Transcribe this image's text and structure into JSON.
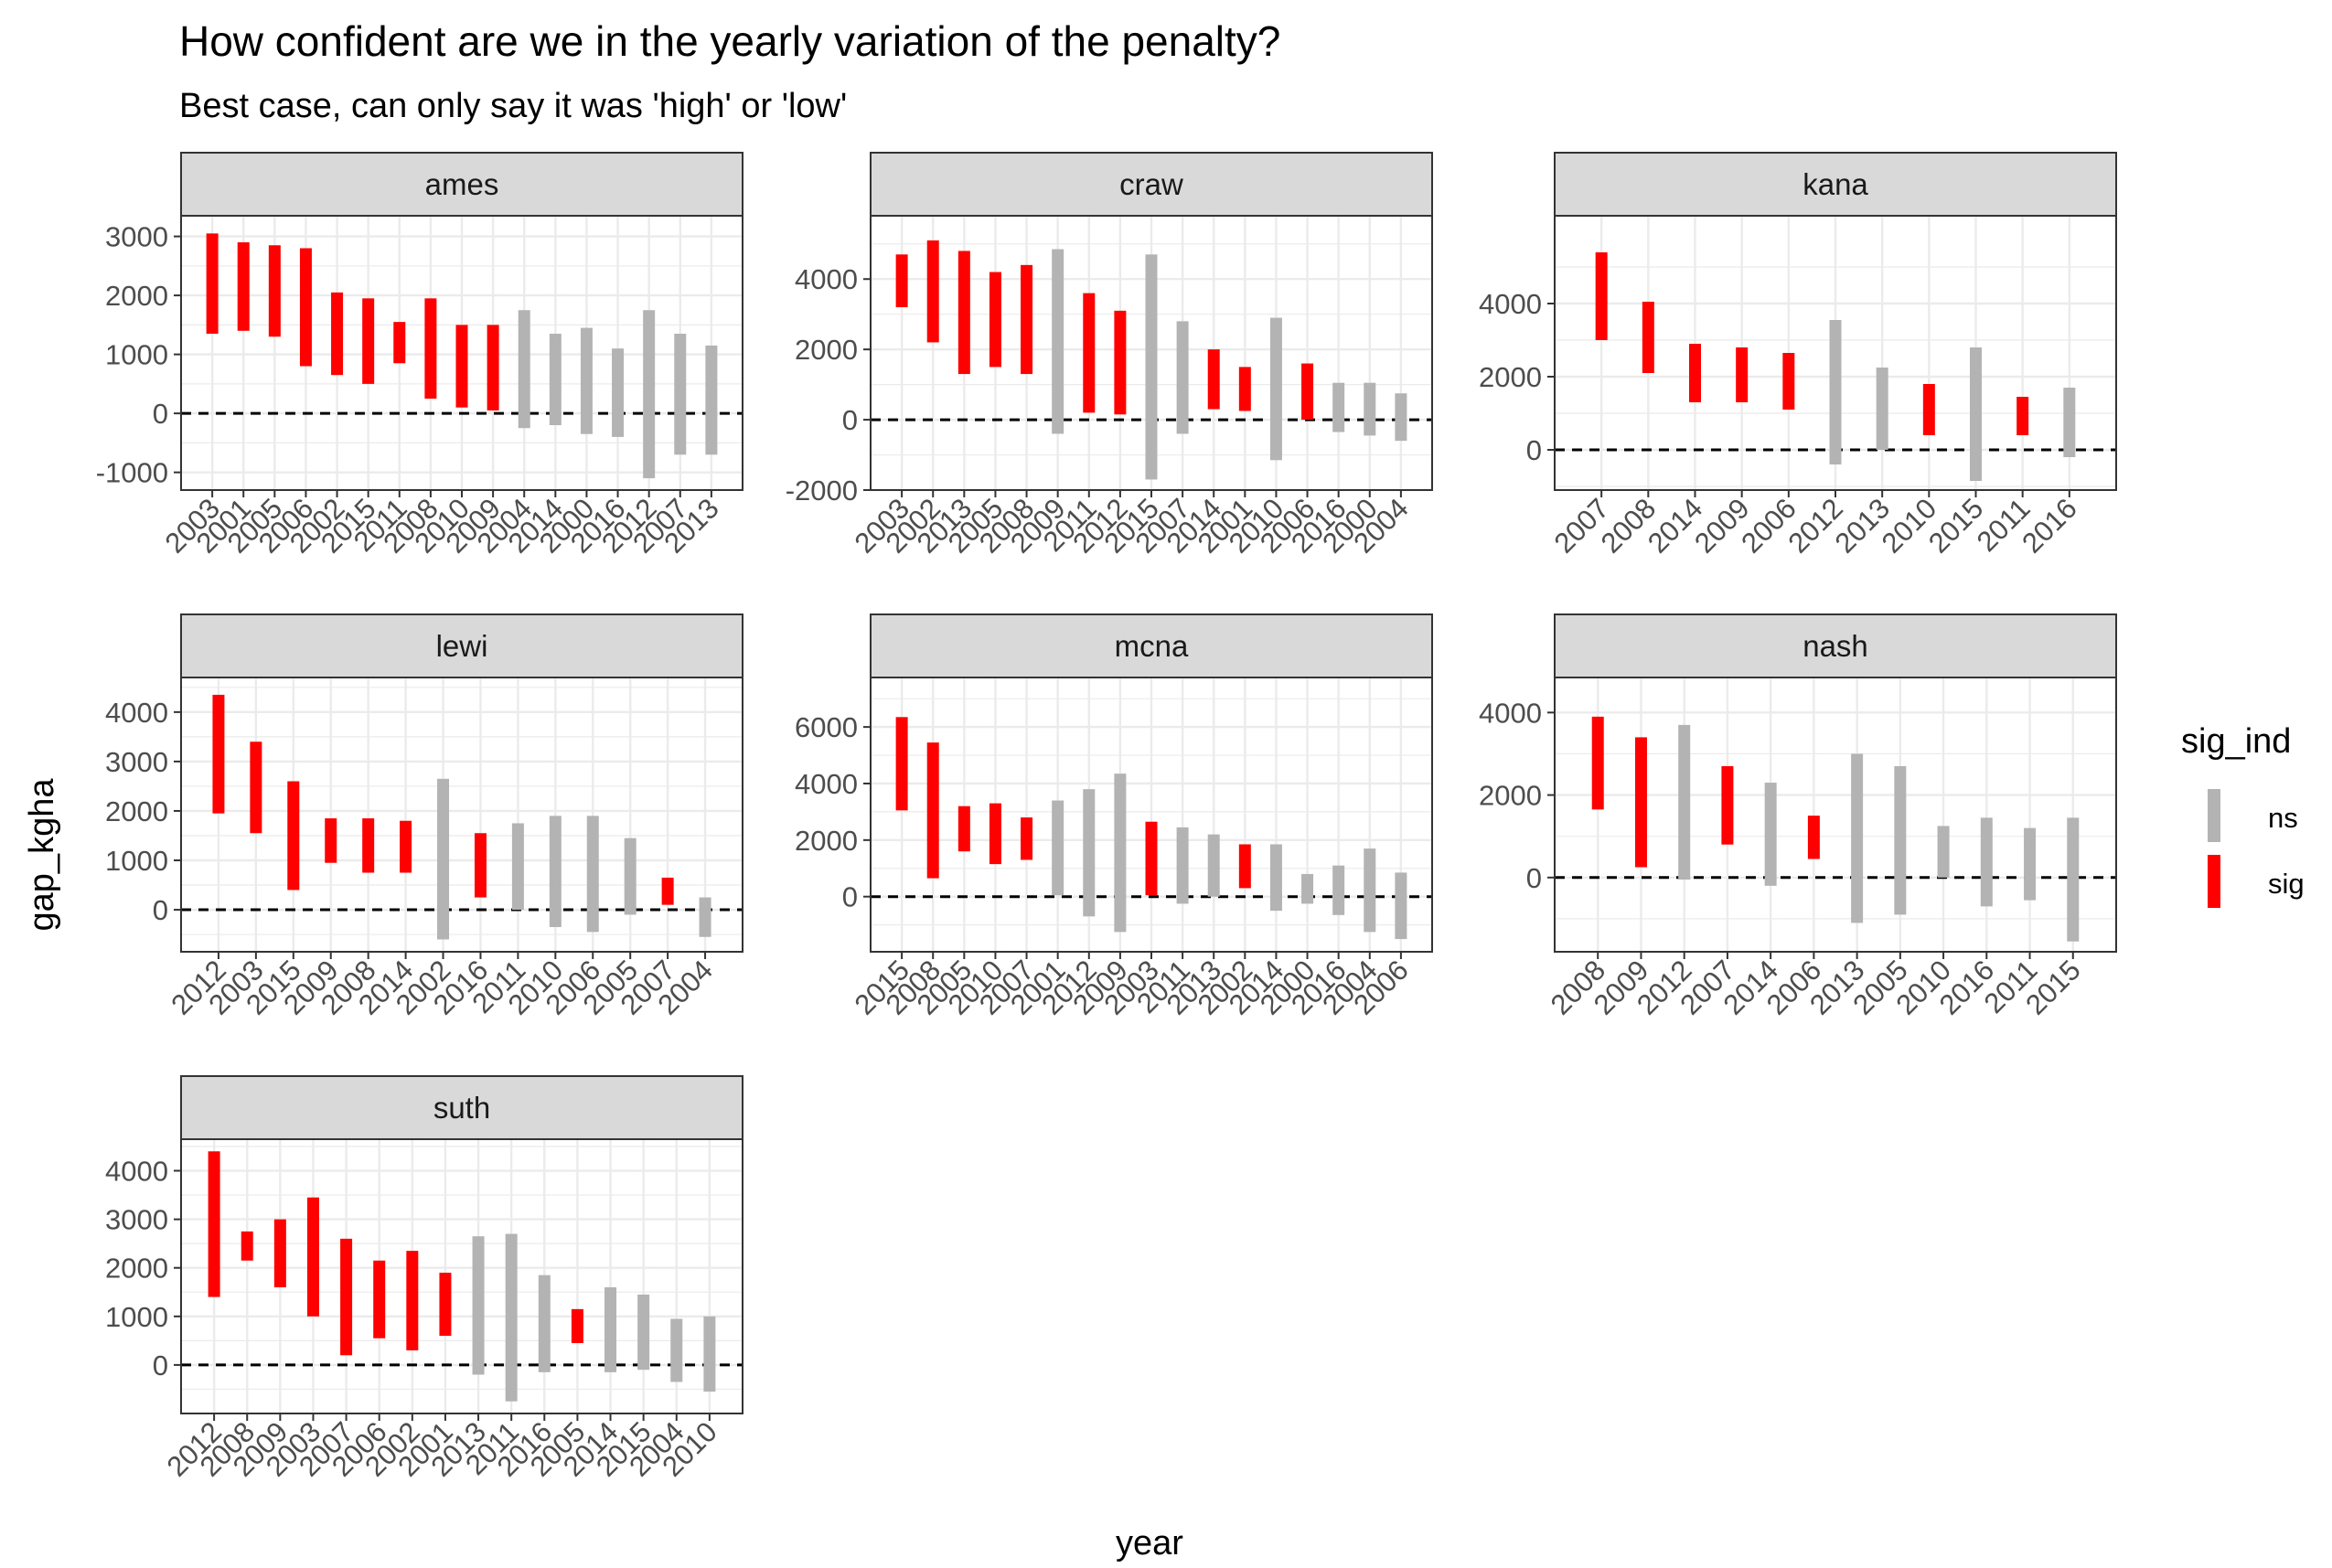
{
  "title": "How confident are we in the yearly variation of the penalty?",
  "subtitle": "Best case, can only say it was 'high' or 'low'",
  "chart_data": {
    "type": "faceted-range",
    "title": "How confident are we in the yearly variation of the penalty?",
    "subtitle": "Best case, can only say it was 'high' or 'low'",
    "xlabel": "year",
    "ylabel": "gap_kgha",
    "grid": true,
    "reference_line": 0,
    "legend": {
      "title": "sig_ind",
      "position": "right",
      "entries": [
        {
          "name": "ns",
          "color": "#B3B3B3"
        },
        {
          "name": "sig",
          "color": "#FF0000"
        }
      ]
    },
    "colors": {
      "sig": "#FF0000",
      "ns": "#B3B3B3",
      "strip_bg": "#D9D9D9",
      "grid": "#EBEBEB"
    },
    "facets": [
      {
        "name": "ames",
        "ylim": [
          -1300,
          3350
        ],
        "yticks": [
          -1000,
          0,
          1000,
          2000,
          3000
        ],
        "years": [
          "2003",
          "2001",
          "2005",
          "2006",
          "2002",
          "2015",
          "2011",
          "2008",
          "2010",
          "2009",
          "2004",
          "2014",
          "2000",
          "2016",
          "2012",
          "2007",
          "2013"
        ],
        "low": [
          1350,
          1400,
          1300,
          800,
          650,
          500,
          850,
          250,
          100,
          50,
          -250,
          -200,
          -350,
          -400,
          -1100,
          -700,
          -700
        ],
        "high": [
          3050,
          2900,
          2850,
          2800,
          2050,
          1950,
          1550,
          1950,
          1500,
          1500,
          1750,
          1350,
          1450,
          1100,
          1750,
          1350,
          1150
        ],
        "sig": [
          "sig",
          "sig",
          "sig",
          "sig",
          "sig",
          "sig",
          "sig",
          "sig",
          "sig",
          "sig",
          "ns",
          "ns",
          "ns",
          "ns",
          "ns",
          "ns",
          "ns"
        ]
      },
      {
        "name": "craw",
        "ylim": [
          -2000,
          5800
        ],
        "yticks": [
          -2000,
          0,
          2000,
          4000
        ],
        "years": [
          "2003",
          "2002",
          "2013",
          "2005",
          "2008",
          "2009",
          "2011",
          "2012",
          "2015",
          "2007",
          "2014",
          "2001",
          "2010",
          "2006",
          "2016",
          "2000",
          "2004"
        ],
        "low": [
          3200,
          2200,
          1300,
          1500,
          1300,
          -400,
          200,
          150,
          -1700,
          -400,
          300,
          250,
          -1150,
          0,
          -350,
          -450,
          -600
        ],
        "high": [
          4700,
          5100,
          4800,
          4200,
          4400,
          4850,
          3600,
          3100,
          4700,
          2800,
          2000,
          1500,
          2900,
          1600,
          1050,
          1050,
          750
        ],
        "sig": [
          "sig",
          "sig",
          "sig",
          "sig",
          "sig",
          "ns",
          "sig",
          "sig",
          "ns",
          "ns",
          "sig",
          "sig",
          "ns",
          "sig",
          "ns",
          "ns",
          "ns"
        ]
      },
      {
        "name": "kana",
        "ylim": [
          -1100,
          6400
        ],
        "yticks": [
          0,
          2000,
          4000
        ],
        "years": [
          "2007",
          "2008",
          "2014",
          "2009",
          "2006",
          "2012",
          "2013",
          "2010",
          "2015",
          "2011",
          "2016"
        ],
        "low": [
          3000,
          2100,
          1300,
          1300,
          1100,
          -400,
          0,
          400,
          -850,
          400,
          -200
        ],
        "high": [
          5400,
          4050,
          2900,
          2800,
          2650,
          3550,
          2250,
          1800,
          2800,
          1450,
          1700
        ],
        "sig": [
          "sig",
          "sig",
          "sig",
          "sig",
          "sig",
          "ns",
          "ns",
          "sig",
          "ns",
          "sig",
          "ns"
        ]
      },
      {
        "name": "lewi",
        "ylim": [
          -850,
          4700
        ],
        "yticks": [
          0,
          1000,
          2000,
          3000,
          4000
        ],
        "years": [
          "2012",
          "2003",
          "2015",
          "2009",
          "2008",
          "2014",
          "2002",
          "2016",
          "2011",
          "2010",
          "2006",
          "2005",
          "2007",
          "2004"
        ],
        "low": [
          1950,
          1550,
          400,
          950,
          750,
          750,
          -600,
          250,
          0,
          -350,
          -450,
          -100,
          100,
          -550
        ],
        "high": [
          4350,
          3400,
          2600,
          1850,
          1850,
          1800,
          2650,
          1550,
          1750,
          1900,
          1900,
          1450,
          650,
          250
        ],
        "sig": [
          "sig",
          "sig",
          "sig",
          "sig",
          "sig",
          "sig",
          "ns",
          "sig",
          "ns",
          "ns",
          "ns",
          "ns",
          "sig",
          "ns"
        ]
      },
      {
        "name": "mcna",
        "ylim": [
          -1950,
          7750
        ],
        "yticks": [
          0,
          2000,
          4000,
          6000
        ],
        "years": [
          "2015",
          "2008",
          "2005",
          "2010",
          "2007",
          "2001",
          "2012",
          "2009",
          "2003",
          "2011",
          "2013",
          "2002",
          "2014",
          "2000",
          "2016",
          "2004",
          "2006"
        ],
        "low": [
          3050,
          650,
          1600,
          1150,
          1300,
          50,
          -700,
          -1250,
          50,
          -250,
          0,
          300,
          -500,
          -250,
          -650,
          -1250,
          -1500
        ],
        "high": [
          6350,
          5450,
          3200,
          3300,
          2800,
          3400,
          3800,
          4350,
          2650,
          2450,
          2200,
          1850,
          1850,
          800,
          1100,
          1700,
          850
        ],
        "sig": [
          "sig",
          "sig",
          "sig",
          "sig",
          "sig",
          "ns",
          "ns",
          "ns",
          "sig",
          "ns",
          "ns",
          "sig",
          "ns",
          "ns",
          "ns",
          "ns",
          "ns"
        ]
      },
      {
        "name": "nash",
        "ylim": [
          -1800,
          4850
        ],
        "yticks": [
          0,
          2000,
          4000
        ],
        "years": [
          "2008",
          "2009",
          "2012",
          "2007",
          "2014",
          "2006",
          "2013",
          "2005",
          "2010",
          "2016",
          "2011",
          "2015"
        ],
        "low": [
          1650,
          250,
          -50,
          800,
          -200,
          450,
          -1100,
          -900,
          0,
          -700,
          -550,
          -1550
        ],
        "high": [
          3900,
          3400,
          3700,
          2700,
          2300,
          1500,
          3000,
          2700,
          1250,
          1450,
          1200,
          1450
        ],
        "sig": [
          "sig",
          "sig",
          "ns",
          "sig",
          "ns",
          "sig",
          "ns",
          "ns",
          "ns",
          "ns",
          "ns",
          "ns"
        ]
      },
      {
        "name": "suth",
        "ylim": [
          -1000,
          4650
        ],
        "yticks": [
          0,
          1000,
          2000,
          3000,
          4000
        ],
        "years": [
          "2012",
          "2008",
          "2009",
          "2003",
          "2007",
          "2006",
          "2002",
          "2001",
          "2013",
          "2011",
          "2016",
          "2005",
          "2014",
          "2015",
          "2004",
          "2010"
        ],
        "low": [
          1400,
          2150,
          1600,
          1000,
          200,
          550,
          300,
          600,
          -200,
          -750,
          -150,
          450,
          -150,
          -100,
          -350,
          -550
        ],
        "high": [
          4400,
          2750,
          3000,
          3450,
          2600,
          2150,
          2350,
          1900,
          2650,
          2700,
          1850,
          1150,
          1600,
          1450,
          950,
          1000
        ],
        "sig": [
          "sig",
          "sig",
          "sig",
          "sig",
          "sig",
          "sig",
          "sig",
          "sig",
          "ns",
          "ns",
          "ns",
          "sig",
          "ns",
          "ns",
          "ns",
          "ns"
        ]
      }
    ]
  }
}
